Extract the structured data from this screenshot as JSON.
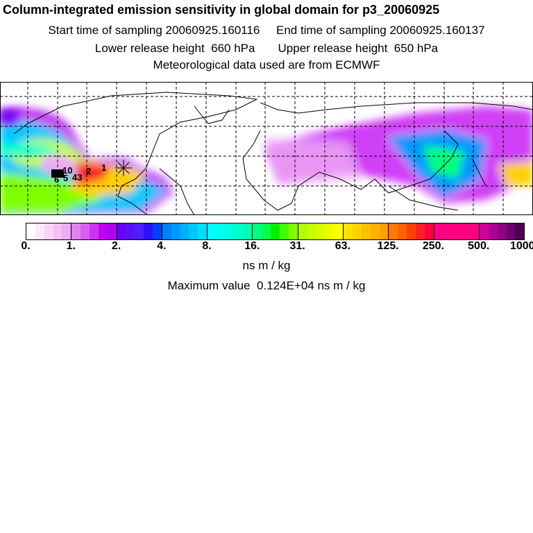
{
  "header": {
    "title": "Column-integrated emission sensitivity in global domain for p3_20060925",
    "sampling": "Start time of sampling 20060925.160116     End time of sampling 20060925.160137",
    "release": "Lower release height  660 hPa       Upper release height  650 hPa",
    "met": "Meteorological data used are from ECMWF"
  },
  "map": {
    "trajectory_labels": [
      "1",
      "2",
      "43",
      "5",
      "6",
      "10"
    ],
    "receptor_marker": "asterisk-icon"
  },
  "colorbar": {
    "labels": [
      "0.",
      "1.",
      "2.",
      "4.",
      "8.",
      "16.",
      "31.",
      "63.",
      "125.",
      "250.",
      "500.",
      "1000."
    ],
    "segments": [
      [
        "#ffffff",
        "#fde8fd",
        "#f9d4f9",
        "#f4c0f6",
        "#efaaf2"
      ],
      [
        "#e082f0",
        "#d860f0",
        "#cc33f0",
        "#c000f4",
        "#b000f0"
      ],
      [
        "#6a00f8",
        "#5a10ff",
        "#4a20ff",
        "#2a10ff",
        "#0040ff"
      ],
      [
        "#0080ff",
        "#0098ff",
        "#00b0ff",
        "#00c8ff",
        "#00dcff"
      ],
      [
        "#00ffff",
        "#00fff0",
        "#00ffe0",
        "#00ffcc",
        "#00ffb0"
      ],
      [
        "#00ff80",
        "#00ff50",
        "#00f000",
        "#40ff00",
        "#80ff00"
      ],
      [
        "#b0ff00",
        "#c8ff00",
        "#d8ff00",
        "#ecff00",
        "#ffff00"
      ],
      [
        "#ffe000",
        "#ffd000",
        "#ffc000",
        "#ffb000",
        "#ffa000"
      ],
      [
        "#ff7800",
        "#ff6000",
        "#ff4000",
        "#ff2020",
        "#ff0040"
      ],
      [
        "#ff0080",
        "#ff0080",
        "#ff0080",
        "#ff0080",
        "#ff0080"
      ],
      [
        "#d0009a",
        "#b00090",
        "#900080",
        "#700070",
        "#500050"
      ]
    ],
    "unit": "ns m / kg",
    "max_value": "Maximum value  0.124E+04 ns m / kg"
  }
}
